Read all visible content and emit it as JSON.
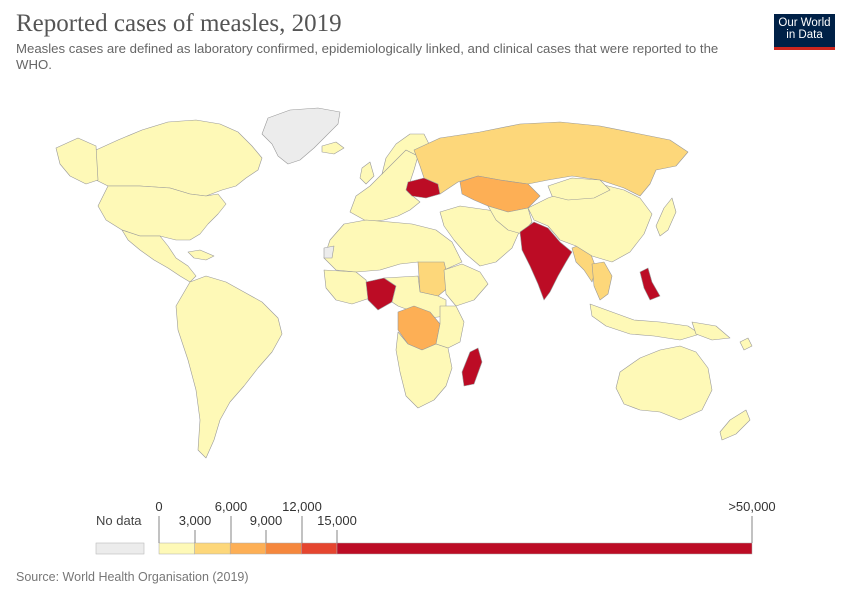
{
  "header": {
    "title": "Reported cases of measles, 2019",
    "subtitle": "Measles cases are defined as laboratory confirmed, epidemiologically linked, and clinical cases that were reported to the WHO.",
    "logo_line1": "Our World",
    "logo_line2": "in Data"
  },
  "legend": {
    "no_data_label": "No data",
    "no_data_color": "#ececec",
    "ticks_top": [
      "0",
      "6,000",
      "12,000",
      ">50,000"
    ],
    "ticks_bottom": [
      "3,000",
      "9,000",
      "15,000"
    ],
    "bins": [
      {
        "from": 0,
        "to": 3000,
        "color": "#fef9b7"
      },
      {
        "from": 3000,
        "to": 6000,
        "color": "#fdd77a"
      },
      {
        "from": 6000,
        "to": 9000,
        "color": "#fdaf55"
      },
      {
        "from": 9000,
        "to": 12000,
        "color": "#f5873d"
      },
      {
        "from": 12000,
        "to": 15000,
        "color": "#e5452f"
      },
      {
        "from": 15000,
        "to": 50000,
        "color": "#bc0c25"
      }
    ]
  },
  "map_colors": {
    "base": "#fef9b7",
    "no_data": "#ececec",
    "ocean": "#ffffff",
    "border": "#9a9a9a"
  },
  "footer": {
    "source": "Source: World Health Organisation (2019)"
  }
}
